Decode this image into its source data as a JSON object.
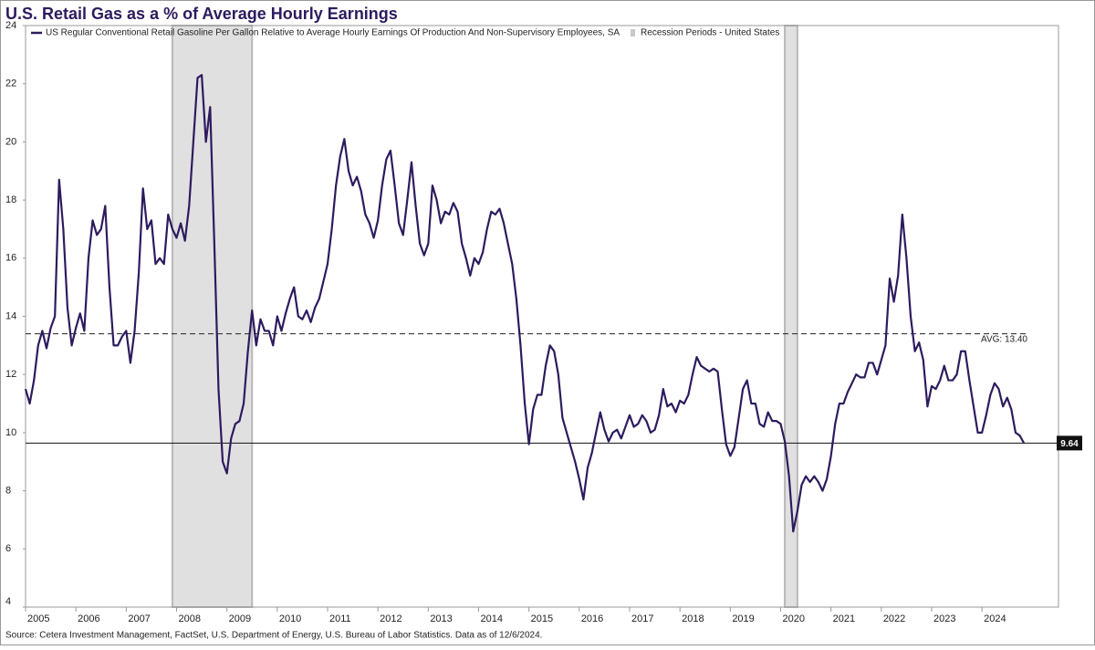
{
  "chart_data": {
    "type": "line",
    "title": "U.S. Retail Gas as a % of Average Hourly Earnings",
    "source": "Source: Cetera Investment Management, FactSet, U.S. Department of Energy, U.S. Bureau of Labor Statistics. Data as of 12/6/2024.",
    "x": [
      2005,
      2005.083,
      2005.167,
      2005.25,
      2005.333,
      2005.417,
      2005.5,
      2005.583,
      2005.667,
      2005.75,
      2005.833,
      2005.917,
      2006,
      2006.083,
      2006.167,
      2006.25,
      2006.333,
      2006.417,
      2006.5,
      2006.583,
      2006.667,
      2006.75,
      2006.833,
      2006.917,
      2007,
      2007.083,
      2007.167,
      2007.25,
      2007.333,
      2007.417,
      2007.5,
      2007.583,
      2007.667,
      2007.75,
      2007.833,
      2007.917,
      2008,
      2008.083,
      2008.167,
      2008.25,
      2008.333,
      2008.417,
      2008.5,
      2008.583,
      2008.667,
      2008.75,
      2008.833,
      2008.917,
      2009,
      2009.083,
      2009.167,
      2009.25,
      2009.333,
      2009.417,
      2009.5,
      2009.583,
      2009.667,
      2009.75,
      2009.833,
      2009.917,
      2010,
      2010.083,
      2010.167,
      2010.25,
      2010.333,
      2010.417,
      2010.5,
      2010.583,
      2010.667,
      2010.75,
      2010.833,
      2010.917,
      2011,
      2011.083,
      2011.167,
      2011.25,
      2011.333,
      2011.417,
      2011.5,
      2011.583,
      2011.667,
      2011.75,
      2011.833,
      2011.917,
      2012,
      2012.083,
      2012.167,
      2012.25,
      2012.333,
      2012.417,
      2012.5,
      2012.583,
      2012.667,
      2012.75,
      2012.833,
      2012.917,
      2013,
      2013.083,
      2013.167,
      2013.25,
      2013.333,
      2013.417,
      2013.5,
      2013.583,
      2013.667,
      2013.75,
      2013.833,
      2013.917,
      2014,
      2014.083,
      2014.167,
      2014.25,
      2014.333,
      2014.417,
      2014.5,
      2014.583,
      2014.667,
      2014.75,
      2014.833,
      2014.917,
      2015,
      2015.083,
      2015.167,
      2015.25,
      2015.333,
      2015.417,
      2015.5,
      2015.583,
      2015.667,
      2015.75,
      2015.833,
      2015.917,
      2016,
      2016.083,
      2016.167,
      2016.25,
      2016.333,
      2016.417,
      2016.5,
      2016.583,
      2016.667,
      2016.75,
      2016.833,
      2016.917,
      2017,
      2017.083,
      2017.167,
      2017.25,
      2017.333,
      2017.417,
      2017.5,
      2017.583,
      2017.667,
      2017.75,
      2017.833,
      2017.917,
      2018,
      2018.083,
      2018.167,
      2018.25,
      2018.333,
      2018.417,
      2018.5,
      2018.583,
      2018.667,
      2018.75,
      2018.833,
      2018.917,
      2019,
      2019.083,
      2019.167,
      2019.25,
      2019.333,
      2019.417,
      2019.5,
      2019.583,
      2019.667,
      2019.75,
      2019.833,
      2019.917,
      2020,
      2020.083,
      2020.167,
      2020.25,
      2020.333,
      2020.417,
      2020.5,
      2020.583,
      2020.667,
      2020.75,
      2020.833,
      2020.917,
      2021,
      2021.083,
      2021.167,
      2021.25,
      2021.333,
      2021.417,
      2021.5,
      2021.583,
      2021.667,
      2021.75,
      2021.833,
      2021.917,
      2022,
      2022.083,
      2022.167,
      2022.25,
      2022.333,
      2022.417,
      2022.5,
      2022.583,
      2022.667,
      2022.75,
      2022.833,
      2022.917,
      2023,
      2023.083,
      2023.167,
      2023.25,
      2023.333,
      2023.417,
      2023.5,
      2023.583,
      2023.667,
      2023.75,
      2023.833,
      2023.917,
      2024,
      2024.083,
      2024.167,
      2024.25,
      2024.333,
      2024.417,
      2024.5,
      2024.583,
      2024.667,
      2024.75,
      2024.833
    ],
    "series": [
      {
        "name": "US Regular Conventional Retail Gasoline Per Gallon Relative to Average Hourly Earnings Of Production And Non-Supervisory Employees, SA",
        "color": "#2d1b5e",
        "values": [
          11.5,
          11.0,
          11.8,
          13.0,
          13.5,
          12.9,
          13.6,
          14.0,
          18.7,
          17.0,
          14.3,
          13.0,
          13.6,
          14.1,
          13.5,
          16.0,
          17.3,
          16.8,
          17.0,
          17.8,
          15.0,
          13.0,
          13.0,
          13.3,
          13.5,
          12.4,
          13.5,
          15.5,
          18.4,
          17.0,
          17.3,
          15.8,
          16.0,
          15.8,
          17.5,
          17.0,
          16.7,
          17.2,
          16.6,
          17.8,
          20.0,
          22.2,
          22.3,
          20.0,
          21.2,
          16.5,
          11.5,
          9.0,
          8.6,
          9.8,
          10.3,
          10.4,
          11.0,
          12.8,
          14.2,
          13.0,
          13.9,
          13.5,
          13.5,
          13.0,
          14.0,
          13.5,
          14.1,
          14.6,
          15.0,
          14.0,
          13.9,
          14.2,
          13.8,
          14.3,
          14.6,
          15.2,
          15.8,
          17.0,
          18.5,
          19.5,
          20.1,
          19.0,
          18.5,
          18.8,
          18.3,
          17.5,
          17.2,
          16.7,
          17.3,
          18.5,
          19.4,
          19.7,
          18.5,
          17.2,
          16.8,
          18.0,
          19.3,
          17.8,
          16.5,
          16.1,
          16.5,
          18.5,
          18.0,
          17.2,
          17.6,
          17.5,
          17.9,
          17.6,
          16.5,
          16.0,
          15.4,
          16.0,
          15.8,
          16.2,
          17.0,
          17.6,
          17.5,
          17.7,
          17.2,
          16.5,
          15.8,
          14.6,
          13.0,
          11.0,
          9.6,
          10.8,
          11.3,
          11.3,
          12.3,
          13.0,
          12.8,
          12.0,
          10.5,
          10.0,
          9.5,
          9.0,
          8.4,
          7.7,
          8.8,
          9.3,
          10.0,
          10.7,
          10.1,
          9.7,
          10.0,
          10.1,
          9.8,
          10.2,
          10.6,
          10.2,
          10.3,
          10.6,
          10.4,
          10.0,
          10.1,
          10.6,
          11.5,
          10.9,
          11.0,
          10.7,
          11.1,
          11.0,
          11.3,
          12.0,
          12.6,
          12.3,
          12.2,
          12.1,
          12.2,
          12.1,
          10.8,
          9.6,
          9.2,
          9.5,
          10.5,
          11.5,
          11.8,
          11.0,
          11.0,
          10.3,
          10.2,
          10.7,
          10.4,
          10.4,
          10.3,
          9.7,
          8.5,
          6.6,
          7.3,
          8.2,
          8.5,
          8.3,
          8.5,
          8.3,
          8.0,
          8.4,
          9.2,
          10.3,
          11.0,
          11.0,
          11.4,
          11.7,
          12.0,
          11.9,
          11.9,
          12.4,
          12.4,
          12.0,
          12.5,
          13.0,
          15.3,
          14.5,
          15.4,
          17.5,
          16.0,
          14.0,
          12.8,
          13.1,
          12.5,
          10.9,
          11.6,
          11.5,
          11.8,
          12.3,
          11.8,
          11.8,
          12.0,
          12.8,
          12.8,
          11.8,
          10.9,
          10.0,
          10.0,
          10.6,
          11.3,
          11.7,
          11.5,
          10.9,
          11.2,
          10.8,
          10.0,
          9.9,
          9.64
        ]
      }
    ],
    "recession_name": "Recession Periods - United States",
    "recessions": [
      [
        2007.917,
        2009.5
      ],
      [
        2020.083,
        2020.333
      ]
    ],
    "average_line": {
      "value": 13.4,
      "label": "AVG:  13.40"
    },
    "current_line": 9.64,
    "xlim": [
      2005,
      2025.52
    ],
    "xticks": [
      2005,
      2006,
      2007,
      2008,
      2009,
      2010,
      2011,
      2012,
      2013,
      2014,
      2015,
      2016,
      2017,
      2018,
      2019,
      2020,
      2021,
      2022,
      2023,
      2024
    ],
    "ylim": [
      4,
      24
    ],
    "yticks": [
      4,
      6,
      8,
      10,
      12,
      14,
      16,
      18,
      20,
      22,
      24
    ]
  }
}
